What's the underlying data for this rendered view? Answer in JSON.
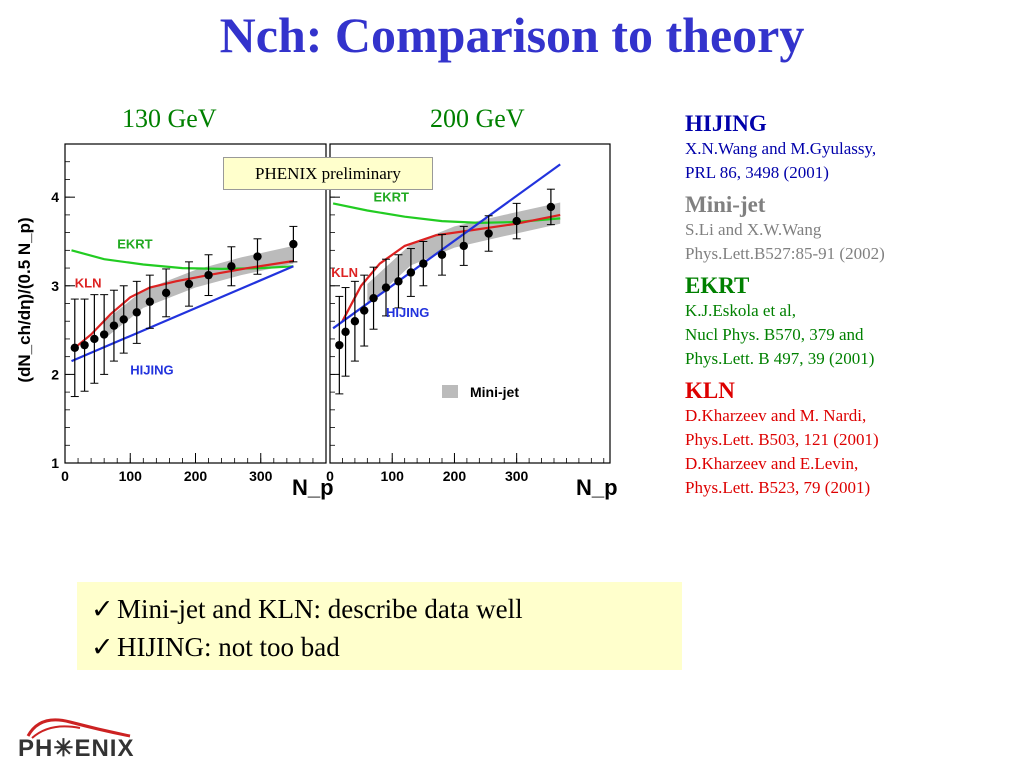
{
  "title": "Nch: Comparison to theory",
  "panels": {
    "left_label": "130 GeV",
    "right_label": "200 GeV",
    "preliminary": "PHENIX preliminary"
  },
  "references": [
    {
      "name": "HIJING",
      "color": "#0000aa",
      "lines": [
        "X.N.Wang and M.Gyulassy,",
        "PRL 86, 3498 (2001)"
      ]
    },
    {
      "name": "Mini-jet",
      "color": "#808080",
      "lines": [
        "S.Li and X.W.Wang",
        "Phys.Lett.B527:85-91 (2002)"
      ]
    },
    {
      "name": "EKRT",
      "color": "#008000",
      "lines": [
        "K.J.Eskola et al,",
        "Nucl Phys. B570, 379 and",
        "Phys.Lett. B 497, 39 (2001)"
      ]
    },
    {
      "name": "KLN",
      "color": "#dd0000",
      "lines": [
        "D.Kharzeev and M. Nardi,",
        "Phys.Lett. B503, 121 (2001)",
        "D.Kharzeev and E.Levin,",
        "Phys.Lett. B523, 79 (2001)"
      ]
    }
  ],
  "summary": [
    "Mini-jet and KLN: describe data well",
    "HIJING: not too bad"
  ],
  "check_glyph": "✓",
  "logo_text": "PH✳ENIX",
  "chart_data": {
    "type": "scatter",
    "ylabel": "(dN_ch/dη)/(0.5 N_p)",
    "xlabel": "N_p",
    "y_ticks": [
      1,
      2,
      3,
      4
    ],
    "ylim": [
      1,
      4.6
    ],
    "panels": [
      {
        "xlim": [
          0,
          400
        ],
        "x_ticks": [
          0,
          100,
          200,
          300
        ],
        "data": [
          {
            "x": 15,
            "y": 2.3,
            "err": 0.55
          },
          {
            "x": 30,
            "y": 2.33,
            "err": 0.52
          },
          {
            "x": 45,
            "y": 2.4,
            "err": 0.5
          },
          {
            "x": 60,
            "y": 2.45,
            "err": 0.45
          },
          {
            "x": 75,
            "y": 2.55,
            "err": 0.4
          },
          {
            "x": 90,
            "y": 2.62,
            "err": 0.38
          },
          {
            "x": 110,
            "y": 2.7,
            "err": 0.35
          },
          {
            "x": 130,
            "y": 2.82,
            "err": 0.3
          },
          {
            "x": 155,
            "y": 2.92,
            "err": 0.27
          },
          {
            "x": 190,
            "y": 3.02,
            "err": 0.25
          },
          {
            "x": 220,
            "y": 3.12,
            "err": 0.23
          },
          {
            "x": 255,
            "y": 3.22,
            "err": 0.22
          },
          {
            "x": 295,
            "y": 3.33,
            "err": 0.2
          },
          {
            "x": 350,
            "y": 3.47,
            "err": 0.2
          }
        ],
        "curves": [
          {
            "name": "EKRT",
            "color": "#22cc22",
            "points": [
              [
                10,
                3.4
              ],
              [
                60,
                3.3
              ],
              [
                120,
                3.24
              ],
              [
                180,
                3.2
              ],
              [
                240,
                3.19
              ],
              [
                300,
                3.2
              ],
              [
                350,
                3.22
              ]
            ]
          },
          {
            "name": "KLN",
            "color": "#dd2222",
            "points": [
              [
                15,
                2.3
              ],
              [
                40,
                2.45
              ],
              [
                70,
                2.68
              ],
              [
                100,
                2.87
              ],
              [
                130,
                2.98
              ],
              [
                170,
                3.05
              ],
              [
                220,
                3.12
              ],
              [
                280,
                3.2
              ],
              [
                350,
                3.28
              ]
            ]
          },
          {
            "name": "HIJING",
            "color": "#2233dd",
            "points": [
              [
                10,
                2.15
              ],
              [
                350,
                3.22
              ]
            ]
          }
        ],
        "band": {
          "points": [
            [
              60,
              2.5
            ],
            [
              120,
              2.85
            ],
            [
              200,
              3.08
            ],
            [
              270,
              3.22
            ],
            [
              350,
              3.35
            ]
          ],
          "half_width": 0.1
        },
        "labels": [
          {
            "text": "EKRT",
            "x": 80,
            "y": 3.42,
            "color": "#22aa22"
          },
          {
            "text": "KLN",
            "x": 15,
            "y": 2.98,
            "color": "#dd2222"
          },
          {
            "text": "HIJING",
            "x": 100,
            "y": 2.0,
            "color": "#2233dd"
          }
        ]
      },
      {
        "xlim": [
          0,
          450
        ],
        "x_ticks": [
          0,
          100,
          200,
          300
        ],
        "data": [
          {
            "x": 15,
            "y": 2.33,
            "err": 0.55
          },
          {
            "x": 25,
            "y": 2.48,
            "err": 0.5
          },
          {
            "x": 40,
            "y": 2.6,
            "err": 0.45
          },
          {
            "x": 55,
            "y": 2.72,
            "err": 0.4
          },
          {
            "x": 70,
            "y": 2.86,
            "err": 0.35
          },
          {
            "x": 90,
            "y": 2.98,
            "err": 0.32
          },
          {
            "x": 110,
            "y": 3.05,
            "err": 0.3
          },
          {
            "x": 130,
            "y": 3.15,
            "err": 0.27
          },
          {
            "x": 150,
            "y": 3.25,
            "err": 0.25
          },
          {
            "x": 180,
            "y": 3.35,
            "err": 0.23
          },
          {
            "x": 215,
            "y": 3.45,
            "err": 0.22
          },
          {
            "x": 255,
            "y": 3.59,
            "err": 0.2
          },
          {
            "x": 300,
            "y": 3.73,
            "err": 0.2
          },
          {
            "x": 355,
            "y": 3.89,
            "err": 0.2
          }
        ],
        "curves": [
          {
            "name": "EKRT",
            "color": "#22cc22",
            "points": [
              [
                5,
                3.93
              ],
              [
                60,
                3.85
              ],
              [
                120,
                3.78
              ],
              [
                180,
                3.73
              ],
              [
                240,
                3.71
              ],
              [
                300,
                3.72
              ],
              [
                370,
                3.76
              ]
            ]
          },
          {
            "name": "KLN",
            "color": "#dd2222",
            "points": [
              [
                20,
                2.6
              ],
              [
                50,
                3.0
              ],
              [
                80,
                3.25
              ],
              [
                120,
                3.45
              ],
              [
                170,
                3.57
              ],
              [
                230,
                3.63
              ],
              [
                300,
                3.7
              ],
              [
                370,
                3.8
              ]
            ]
          },
          {
            "name": "HIJING",
            "color": "#2233dd",
            "points": [
              [
                5,
                2.52
              ],
              [
                370,
                4.37
              ]
            ]
          }
        ],
        "band": {
          "points": [
            [
              60,
              2.9
            ],
            [
              130,
              3.35
            ],
            [
              200,
              3.55
            ],
            [
              280,
              3.68
            ],
            [
              370,
              3.82
            ]
          ],
          "half_width": 0.12
        },
        "labels": [
          {
            "text": "EKRT",
            "x": 70,
            "y": 3.95,
            "color": "#22aa22"
          },
          {
            "text": "KLN",
            "x": 2,
            "y": 3.1,
            "color": "#dd2222"
          },
          {
            "text": "HIJING",
            "x": 90,
            "y": 2.65,
            "color": "#2233dd"
          }
        ],
        "legend": {
          "text": "Mini-jet",
          "position": "bottom-right"
        }
      }
    ]
  }
}
